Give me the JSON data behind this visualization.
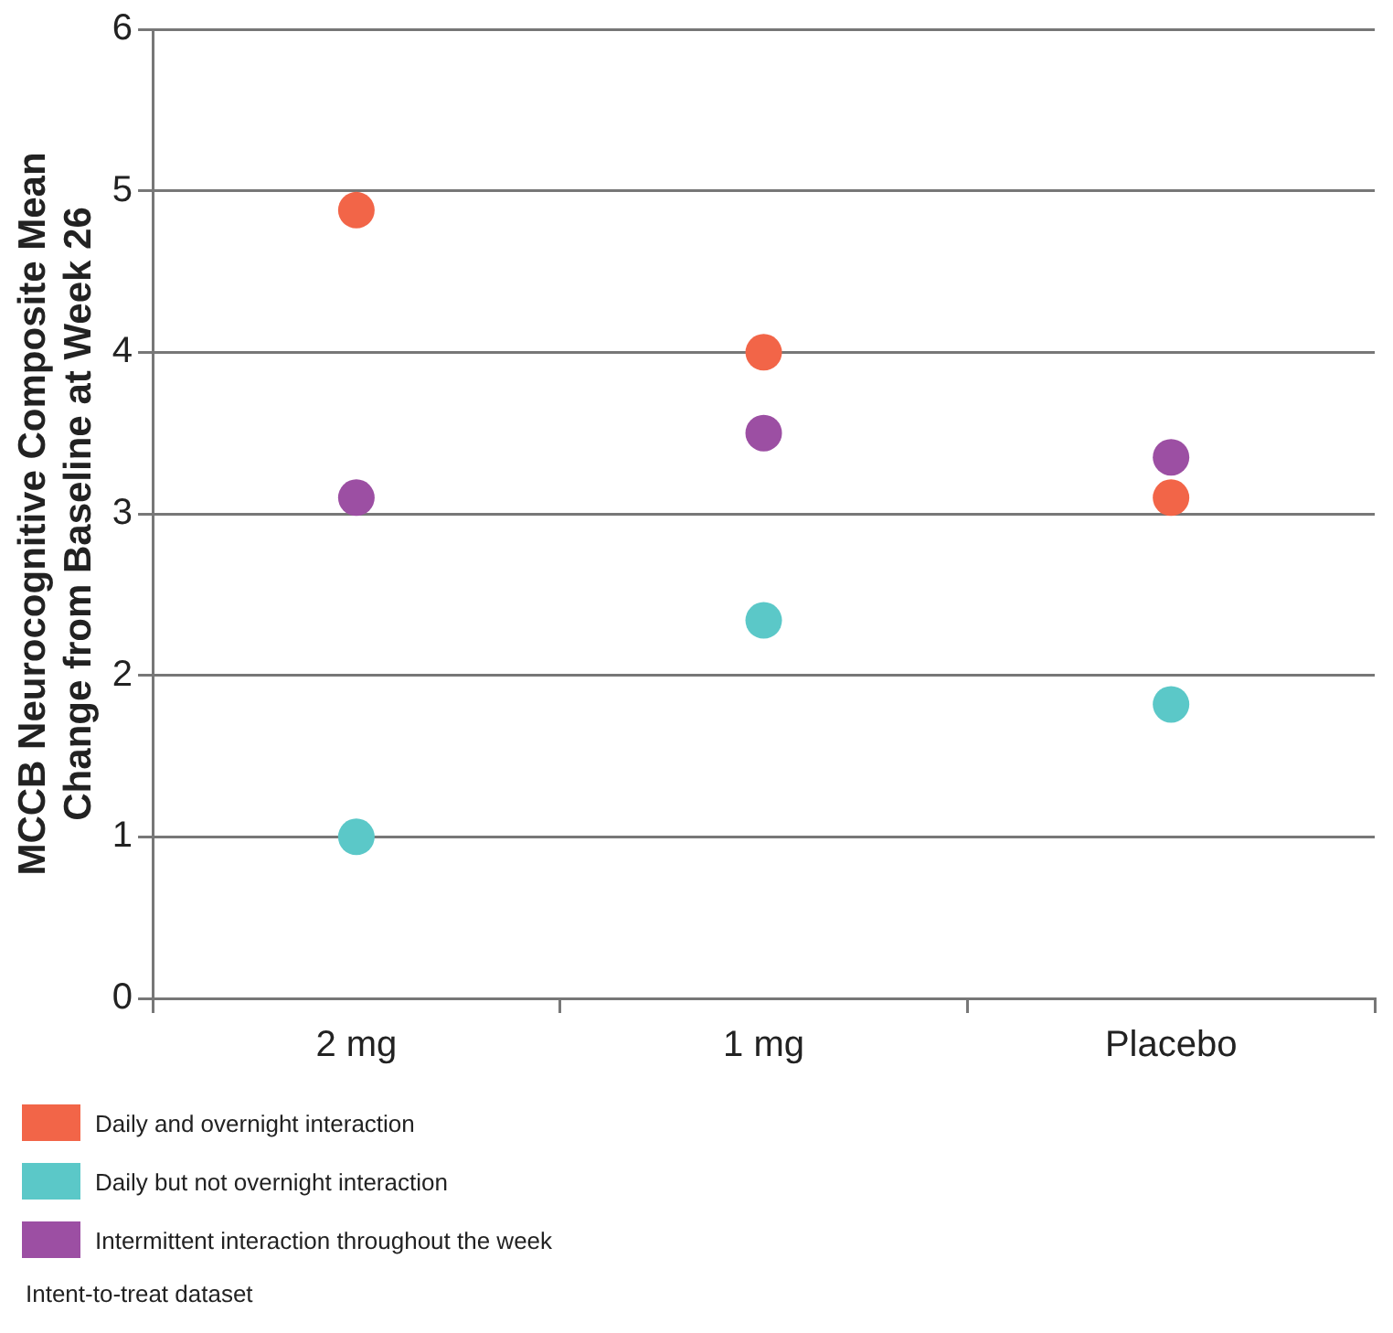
{
  "chart_data": {
    "type": "scatter",
    "ylabel": "MCCB Neurocognitive Composite Mean Change from Baseline at Week 26",
    "categories": [
      "2 mg",
      "1 mg",
      "Placebo"
    ],
    "series": [
      {
        "name": "Daily and overnight interaction",
        "color": "#f26548",
        "values": [
          4.88,
          4.0,
          3.1
        ]
      },
      {
        "name": "Daily but not overnight interaction",
        "color": "#5bc8c8",
        "values": [
          1.0,
          2.34,
          1.82
        ]
      },
      {
        "name": "Intermittent interaction throughout the week",
        "color": "#9c4fa3",
        "values": [
          3.1,
          3.5,
          3.35
        ]
      }
    ],
    "ylim": [
      0,
      6
    ],
    "yticks": [
      0,
      1,
      2,
      3,
      4,
      5,
      6
    ],
    "grid": "y",
    "legend": "bottom",
    "marker": "circle",
    "annotations": [
      "Intent-to-treat dataset"
    ]
  }
}
